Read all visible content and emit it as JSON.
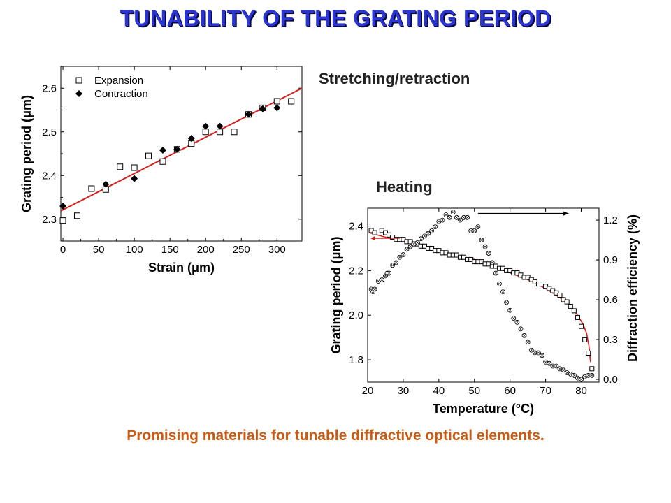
{
  "slide": {
    "title": "TUNABILITY OF THE GRATING PERIOD",
    "stretch_label": "Stretching/retraction",
    "heat_label": "Heating",
    "caption": "Promising materials for tunable diffractive optical elements."
  },
  "colors": {
    "title": "#2b35d6",
    "caption": "#c85a12",
    "fit_line": "#d42020"
  },
  "chart_data": [
    {
      "type": "scatter",
      "xlabel": "Strain (μm)",
      "ylabel": "Grating period (μm)",
      "xlim": [
        -3,
        335
      ],
      "ylim": [
        2.25,
        2.65
      ],
      "xticks": [
        0,
        50,
        100,
        150,
        200,
        250,
        300
      ],
      "yticks": [
        2.3,
        2.4,
        2.5,
        2.6
      ],
      "xtick_labels": [
        "0",
        "50",
        "100",
        "150",
        "200",
        "250",
        "300"
      ],
      "ytick_labels": [
        "2.3",
        "2.4",
        "2.5",
        "2.6"
      ],
      "legend_position": "top-left",
      "series": [
        {
          "name": "Expansion",
          "marker": "open-square",
          "x": [
            0,
            20,
            40,
            60,
            80,
            100,
            120,
            140,
            160,
            180,
            200,
            220,
            240,
            260,
            280,
            300,
            320
          ],
          "y": [
            2.297,
            2.308,
            2.37,
            2.368,
            2.42,
            2.418,
            2.445,
            2.432,
            2.46,
            2.473,
            2.5,
            2.5,
            2.5,
            2.54,
            2.555,
            2.57,
            2.57
          ]
        },
        {
          "name": "Contraction",
          "marker": "filled-diamond",
          "x": [
            0,
            60,
            100,
            140,
            160,
            180,
            200,
            220,
            260,
            280,
            300
          ],
          "y": [
            2.33,
            2.38,
            2.393,
            2.458,
            2.46,
            2.485,
            2.513,
            2.513,
            2.54,
            2.553,
            2.555
          ]
        }
      ],
      "fit_line": {
        "x": [
          -3,
          335
        ],
        "y": [
          2.319,
          2.6
        ]
      }
    },
    {
      "type": "scatter",
      "xlabel": "Temperature (°C)",
      "ylabel": "Grating period (μm)",
      "y2label": "Diffraction efficiency (%)",
      "xlim": [
        20,
        85
      ],
      "ylim": [
        1.7,
        2.48
      ],
      "y2lim": [
        0,
        1.29
      ],
      "xticks": [
        20,
        30,
        40,
        50,
        60,
        70,
        80
      ],
      "yticks": [
        1.8,
        2.0,
        2.2,
        2.4
      ],
      "y2ticks": [
        0.0,
        0.3,
        0.6,
        0.9,
        1.2
      ],
      "xtick_labels": [
        "20",
        "30",
        "40",
        "50",
        "60",
        "70",
        "80"
      ],
      "ytick_labels": [
        "1.8",
        "2.0",
        "2.2",
        "2.4"
      ],
      "y2tick_labels": [
        "0.0",
        "0.3",
        "0.6",
        "0.9",
        "1.2"
      ],
      "series": [
        {
          "axis": "left",
          "marker": "open-square",
          "x": [
            21,
            22,
            24,
            25,
            26,
            27,
            28,
            29,
            30,
            31,
            32,
            33,
            34,
            35,
            36,
            37,
            38,
            39,
            40,
            41,
            42,
            43,
            44,
            45,
            46,
            47,
            48,
            49,
            50,
            51,
            52,
            53,
            54,
            55,
            56,
            57,
            58,
            59,
            60,
            61,
            62,
            63,
            64,
            65,
            66,
            67,
            68,
            69,
            70,
            71,
            72,
            73,
            74,
            75,
            76,
            77,
            78,
            79,
            80,
            81,
            82,
            83
          ],
          "y": [
            2.38,
            2.37,
            2.38,
            2.37,
            2.36,
            2.35,
            2.34,
            2.34,
            2.34,
            2.33,
            2.33,
            2.32,
            2.32,
            2.31,
            2.31,
            2.3,
            2.3,
            2.29,
            2.29,
            2.28,
            2.28,
            2.27,
            2.27,
            2.27,
            2.26,
            2.26,
            2.25,
            2.25,
            2.24,
            2.24,
            2.24,
            2.23,
            2.23,
            2.22,
            2.22,
            2.21,
            2.21,
            2.2,
            2.2,
            2.19,
            2.19,
            2.18,
            2.17,
            2.17,
            2.16,
            2.15,
            2.14,
            2.14,
            2.13,
            2.12,
            2.11,
            2.1,
            2.09,
            2.07,
            2.06,
            2.04,
            2.02,
            1.99,
            1.95,
            1.89,
            1.83,
            1.76
          ]
        },
        {
          "axis": "right",
          "marker": "open-circle-cross",
          "x": [
            21,
            21.5,
            22,
            23,
            24,
            25,
            25.5,
            26,
            27,
            28,
            29,
            30,
            31,
            32,
            33,
            34,
            35,
            36,
            37,
            38,
            39,
            40,
            41,
            42,
            43,
            44,
            45,
            46,
            47,
            48,
            49,
            50,
            51,
            52,
            53,
            54,
            55,
            56,
            57,
            58,
            59,
            60,
            61,
            62,
            63,
            64,
            65,
            66,
            67,
            68,
            69,
            70,
            71,
            72,
            73,
            74,
            75,
            76,
            77,
            78,
            79,
            80,
            81,
            82,
            83
          ],
          "y": [
            0.68,
            0.66,
            0.68,
            0.74,
            0.75,
            0.78,
            0.8,
            0.8,
            0.86,
            0.88,
            0.92,
            0.94,
            0.98,
            1.0,
            1.02,
            1.03,
            1.06,
            1.08,
            1.1,
            1.12,
            1.15,
            1.19,
            1.2,
            1.24,
            1.22,
            1.26,
            1.22,
            1.2,
            1.22,
            1.22,
            1.12,
            1.12,
            1.15,
            1.05,
            1.0,
            0.95,
            0.88,
            0.8,
            0.72,
            0.66,
            0.58,
            0.52,
            0.46,
            0.43,
            0.38,
            0.33,
            0.28,
            0.22,
            0.2,
            0.2,
            0.18,
            0.13,
            0.12,
            0.1,
            0.1,
            0.08,
            0.07,
            0.05,
            0.04,
            0.03,
            0.01,
            0.0,
            0.02,
            0.03,
            0.03
          ]
        }
      ],
      "fit_line": {
        "x": [
          20.5,
          25,
          30,
          35,
          40,
          45,
          50,
          55,
          60,
          65,
          70,
          74,
          77,
          79,
          80.5,
          81.5,
          82.2,
          82.6
        ],
        "y": [
          2.37,
          2.35,
          2.33,
          2.31,
          2.29,
          2.27,
          2.25,
          2.22,
          2.19,
          2.16,
          2.12,
          2.08,
          2.04,
          2.0,
          1.96,
          1.92,
          1.86,
          1.79
        ]
      },
      "arrows": [
        {
          "direction": "right",
          "axis": "right",
          "x": [
            51,
            75
          ],
          "y": 1.25
        },
        {
          "direction": "left",
          "axis": "left",
          "x": [
            29,
            22
          ],
          "y": 2.345
        }
      ]
    }
  ]
}
